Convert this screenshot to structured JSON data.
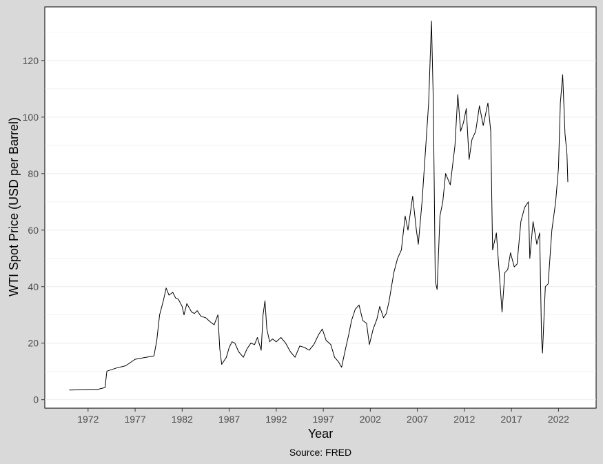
{
  "chart_data": {
    "type": "line",
    "title": "",
    "xlabel": "Year",
    "ylabel": "WTI Spot Price (USD per Barrel)",
    "caption": "Source: FRED",
    "xlim": [
      1967.4,
      2026.0
    ],
    "ylim": [
      -3.0,
      139.0
    ],
    "x_ticks": [
      1972,
      1977,
      1982,
      1987,
      1992,
      1997,
      2002,
      2007,
      2012,
      2017,
      2022
    ],
    "x_tick_labels": [
      "1972",
      "1977",
      "1982",
      "1987",
      "1992",
      "1997",
      "2002",
      "2007",
      "2012",
      "2017",
      "2022"
    ],
    "y_ticks": [
      0,
      20,
      40,
      60,
      80,
      100,
      120
    ],
    "y_tick_labels": [
      "0",
      "20",
      "40",
      "60",
      "80",
      "100",
      "120"
    ],
    "grid": true,
    "colors": {
      "line": "#000000",
      "panel": "#ffffff",
      "background": "#d9d9d9",
      "grid": "#ebebeb"
    },
    "series": [
      {
        "x": [
          1970.0,
          1971.0,
          1972.0,
          1973.0,
          1973.8,
          1974.0,
          1975.0,
          1976.0,
          1977.0,
          1978.0,
          1979.0,
          1979.3,
          1979.6,
          1980.0,
          1980.3,
          1980.6,
          1981.0,
          1981.3,
          1981.6,
          1982.0,
          1982.2,
          1982.5,
          1983.0,
          1983.3,
          1983.6,
          1984.0,
          1984.5,
          1985.0,
          1985.4,
          1985.8,
          1986.0,
          1986.2,
          1986.4,
          1986.7,
          1987.0,
          1987.3,
          1987.6,
          1988.0,
          1988.5,
          1988.9,
          1989.3,
          1989.7,
          1990.0,
          1990.4,
          1990.6,
          1990.8,
          1991.0,
          1991.3,
          1991.6,
          1992.0,
          1992.5,
          1993.0,
          1993.5,
          1994.0,
          1994.5,
          1995.0,
          1995.5,
          1996.0,
          1996.5,
          1996.9,
          1997.3,
          1997.8,
          1998.2,
          1998.6,
          1998.95,
          1999.3,
          1999.7,
          2000.0,
          2000.4,
          2000.8,
          2001.2,
          2001.6,
          2001.9,
          2002.3,
          2002.7,
          2003.0,
          2003.4,
          2003.7,
          2004.0,
          2004.5,
          2004.9,
          2005.3,
          2005.7,
          2006.0,
          2006.5,
          2006.9,
          2007.1,
          2007.5,
          2007.9,
          2008.2,
          2008.5,
          2008.7,
          2008.9,
          2009.1,
          2009.4,
          2009.7,
          2010.0,
          2010.5,
          2011.0,
          2011.3,
          2011.6,
          2011.9,
          2012.2,
          2012.5,
          2012.8,
          2013.2,
          2013.6,
          2014.0,
          2014.5,
          2014.8,
          2015.0,
          2015.4,
          2015.7,
          2016.0,
          2016.3,
          2016.6,
          2016.9,
          2017.3,
          2017.6,
          2018.0,
          2018.4,
          2018.8,
          2018.95,
          2019.3,
          2019.7,
          2020.0,
          2020.2,
          2020.3,
          2020.6,
          2020.9,
          2021.3,
          2021.7,
          2022.0,
          2022.2,
          2022.45,
          2022.7,
          2022.9,
          2023.0
        ],
        "y": [
          3.4,
          3.5,
          3.6,
          3.6,
          4.3,
          10.1,
          11.2,
          12.0,
          14.3,
          14.9,
          15.5,
          21.0,
          30.0,
          35.0,
          39.5,
          37.0,
          38.0,
          36.0,
          35.5,
          33.0,
          30.0,
          34.0,
          31.0,
          30.5,
          31.5,
          29.5,
          29.0,
          27.5,
          26.5,
          30.0,
          18.0,
          12.5,
          13.5,
          15.0,
          18.5,
          20.5,
          20.0,
          17.0,
          15.0,
          18.0,
          20.0,
          19.5,
          22.0,
          17.5,
          30.0,
          35.0,
          25.0,
          20.5,
          21.5,
          20.5,
          22.0,
          20.0,
          17.0,
          15.0,
          19.0,
          18.5,
          17.5,
          19.5,
          23.0,
          25.0,
          21.0,
          19.5,
          15.0,
          13.5,
          11.5,
          17.0,
          23.0,
          28.0,
          32.0,
          33.5,
          28.0,
          27.0,
          19.5,
          25.0,
          28.5,
          33.0,
          29.0,
          30.5,
          35.0,
          45.0,
          50.0,
          53.0,
          65.0,
          60.0,
          72.0,
          60.0,
          55.0,
          70.0,
          90.0,
          105.0,
          134.0,
          105.0,
          42.0,
          39.0,
          65.0,
          70.0,
          80.0,
          76.0,
          90.0,
          108.0,
          95.0,
          98.0,
          103.0,
          85.0,
          92.0,
          95.0,
          104.0,
          97.0,
          105.0,
          95.0,
          53.0,
          59.0,
          45.0,
          31.0,
          45.0,
          46.0,
          52.0,
          47.0,
          48.0,
          63.0,
          68.0,
          70.0,
          50.0,
          63.0,
          55.0,
          59.0,
          22.0,
          16.5,
          40.0,
          41.0,
          60.0,
          70.0,
          82.0,
          105.0,
          115.0,
          94.0,
          87.0,
          77.0
        ]
      }
    ]
  }
}
